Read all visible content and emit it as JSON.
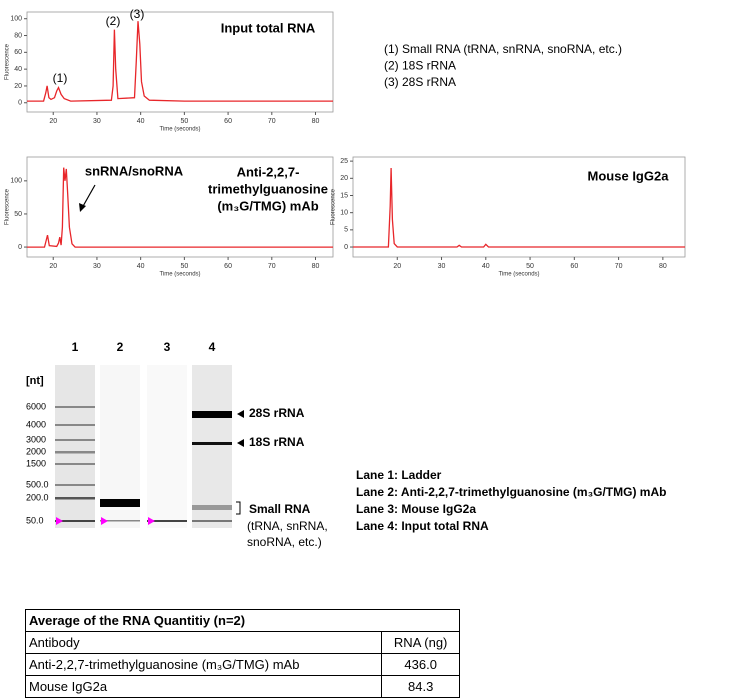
{
  "chart_data": [
    {
      "type": "line",
      "title": "Input total RNA",
      "xlabel": "Time (seconds)",
      "ylabel": "Fluorescence",
      "x": [
        14,
        17.8,
        18.3,
        18.6,
        19,
        19.5,
        20.3,
        20.8,
        21.2,
        21.8,
        22.5,
        24,
        33.3,
        33.7,
        34,
        34.3,
        34.8,
        38.6,
        39,
        39.4,
        39.8,
        40.2,
        40.8,
        42,
        50,
        84
      ],
      "values": [
        2,
        2,
        12,
        20,
        6,
        4,
        6,
        14,
        18,
        10,
        5,
        2,
        3,
        20,
        87,
        40,
        5,
        6,
        50,
        97,
        70,
        25,
        8,
        3,
        2,
        2
      ],
      "color": "#e8262a",
      "xlim": [
        14,
        84
      ],
      "ylim": [
        -11,
        108
      ],
      "xticks": [
        20,
        30,
        40,
        50,
        60,
        70,
        80
      ],
      "yticks": [
        0,
        20,
        40,
        60,
        80,
        100
      ],
      "annotations": [
        "(1)",
        "(2)",
        "(3)"
      ]
    },
    {
      "type": "line",
      "title": [
        "Anti-2,2,7-",
        "trimethylguanosine",
        "(m₃G/TMG) mAb"
      ],
      "xlabel": "Time (seconds)",
      "ylabel": "Fluorescence",
      "x": [
        14,
        18,
        18.4,
        18.7,
        19.1,
        20.8,
        21.2,
        21.5,
        21.8,
        22.1,
        22.4,
        22.7,
        23,
        23.3,
        23.7,
        24.3,
        25,
        84
      ],
      "values": [
        0,
        0,
        10,
        18,
        2,
        1,
        6,
        15,
        3,
        30,
        120,
        100,
        118,
        80,
        30,
        5,
        0,
        0
      ],
      "color": "#e8262a",
      "xlim": [
        14,
        84
      ],
      "ylim": [
        -15,
        136
      ],
      "xticks": [
        20,
        30,
        40,
        50,
        60,
        70,
        80
      ],
      "yticks": [
        0,
        50,
        100
      ],
      "annotations": [
        "snRNA/snoRNA"
      ]
    },
    {
      "type": "line",
      "title": "Mouse IgG2a",
      "xlabel": "Time (seconds)",
      "ylabel": "Fluorescence",
      "x": [
        10,
        18,
        18.4,
        18.6,
        18.9,
        19.3,
        20,
        33.5,
        34,
        34.5,
        39.5,
        40,
        40.6,
        85
      ],
      "values": [
        0,
        0,
        12,
        23,
        8,
        1,
        0,
        0,
        0.5,
        0,
        0,
        0.8,
        0,
        0
      ],
      "color": "#e8262a",
      "xlim": [
        10,
        85
      ],
      "ylim": [
        -2.9,
        26.2
      ],
      "xticks": [
        20,
        30,
        40,
        50,
        60,
        70,
        80
      ],
      "yticks": [
        0,
        5,
        10,
        15,
        20,
        25
      ]
    }
  ],
  "peak_notes": [
    "(1) Small RNA (tRNA, snRNA, snoRNA, etc.)",
    "(2) 18S rRNA",
    "(3) 28S rRNA"
  ],
  "gel": {
    "lanes": [
      "1",
      "2",
      "3",
      "4"
    ],
    "unit": "[nt]",
    "ladder": [
      "6000",
      "4000",
      "3000",
      "2000",
      "1500",
      "500.0",
      "200.0",
      "50.0"
    ],
    "markers": [
      "28S rRNA",
      "18S rRNA"
    ],
    "small_rna": "Small RNA",
    "small_rna_note": [
      "(tRNA, snRNA,",
      "snoRNA, etc.)"
    ]
  },
  "lane_legend": [
    "Lane 1: Ladder",
    "Lane 2: Anti-2,2,7-trimethylguanosine (m₃G/TMG) mAb",
    "Lane 3: Mouse IgG2a",
    "Lane 4: Input total RNA"
  ],
  "table": {
    "title": "Average of the RNA Quantitiy (n=2)",
    "header": [
      "Antibody",
      "RNA (ng)"
    ],
    "rows": [
      [
        "Anti-2,2,7-trimethylguanosine (m₃G/TMG) mAb",
        "436.0"
      ],
      [
        "Mouse IgG2a",
        "84.3"
      ]
    ]
  }
}
